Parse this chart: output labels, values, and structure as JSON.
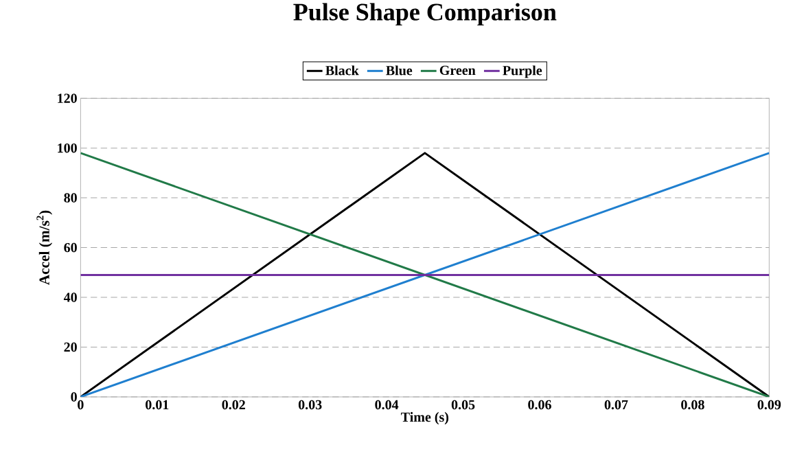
{
  "chart_data": {
    "type": "line",
    "title": "Pulse Shape Comparison",
    "xlabel": "Time (s)",
    "ylabel": "Accel (m/s$^{2}$)",
    "series": [
      {
        "name": "Black",
        "color": "#000000",
        "x": [
          0,
          0.045,
          0.09
        ],
        "values": [
          0,
          98,
          0
        ]
      },
      {
        "name": "Blue",
        "color": "#1f7fcf",
        "x": [
          0,
          0.09
        ],
        "values": [
          0,
          98
        ]
      },
      {
        "name": "Green",
        "color": "#217a48",
        "x": [
          0,
          0.09
        ],
        "values": [
          98,
          0
        ]
      },
      {
        "name": "Purple",
        "color": "#7030a0",
        "x": [
          0,
          0.09
        ],
        "values": [
          49,
          49
        ]
      }
    ],
    "xlim": [
      0,
      0.09
    ],
    "ylim": [
      0,
      120
    ],
    "xticks": [
      {
        "value": 0,
        "label": "0"
      },
      {
        "value": 0.01,
        "label": "0.01"
      },
      {
        "value": 0.02,
        "label": "0.02"
      },
      {
        "value": 0.03,
        "label": "0.03"
      },
      {
        "value": 0.04,
        "label": "0.04"
      },
      {
        "value": 0.05,
        "label": "0.05"
      },
      {
        "value": 0.06,
        "label": "0.06"
      },
      {
        "value": 0.07,
        "label": "0.07"
      },
      {
        "value": 0.08,
        "label": "0.08"
      },
      {
        "value": 0.09,
        "label": "0.09"
      }
    ],
    "yticks": [
      0,
      20,
      40,
      60,
      80,
      100,
      120
    ],
    "grid": "y",
    "legend": "top",
    "marker": "none",
    "line_style": "solid"
  }
}
